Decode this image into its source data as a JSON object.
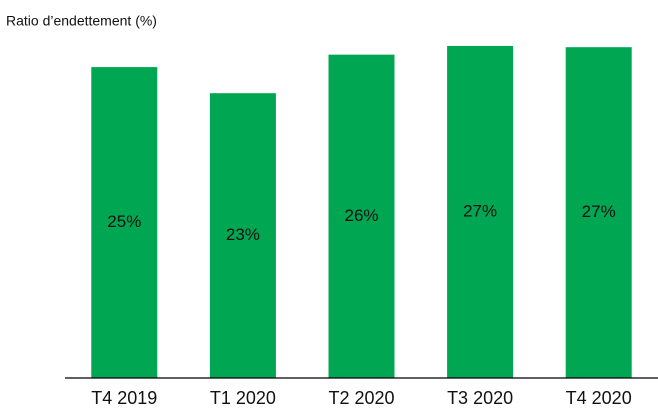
{
  "chart_data": {
    "type": "bar",
    "title": "Ratio d’endettement (%)",
    "categories": [
      "T4 2019",
      "T1 2020",
      "T2 2020",
      "T3 2020",
      "T4 2020"
    ],
    "values": [
      25,
      22.9,
      26,
      26.7,
      26.6
    ],
    "value_labels": [
      "25%",
      "23%",
      "26%",
      "27%",
      "27%"
    ],
    "color": "#00a651",
    "ylim": [
      0,
      27.5
    ]
  }
}
